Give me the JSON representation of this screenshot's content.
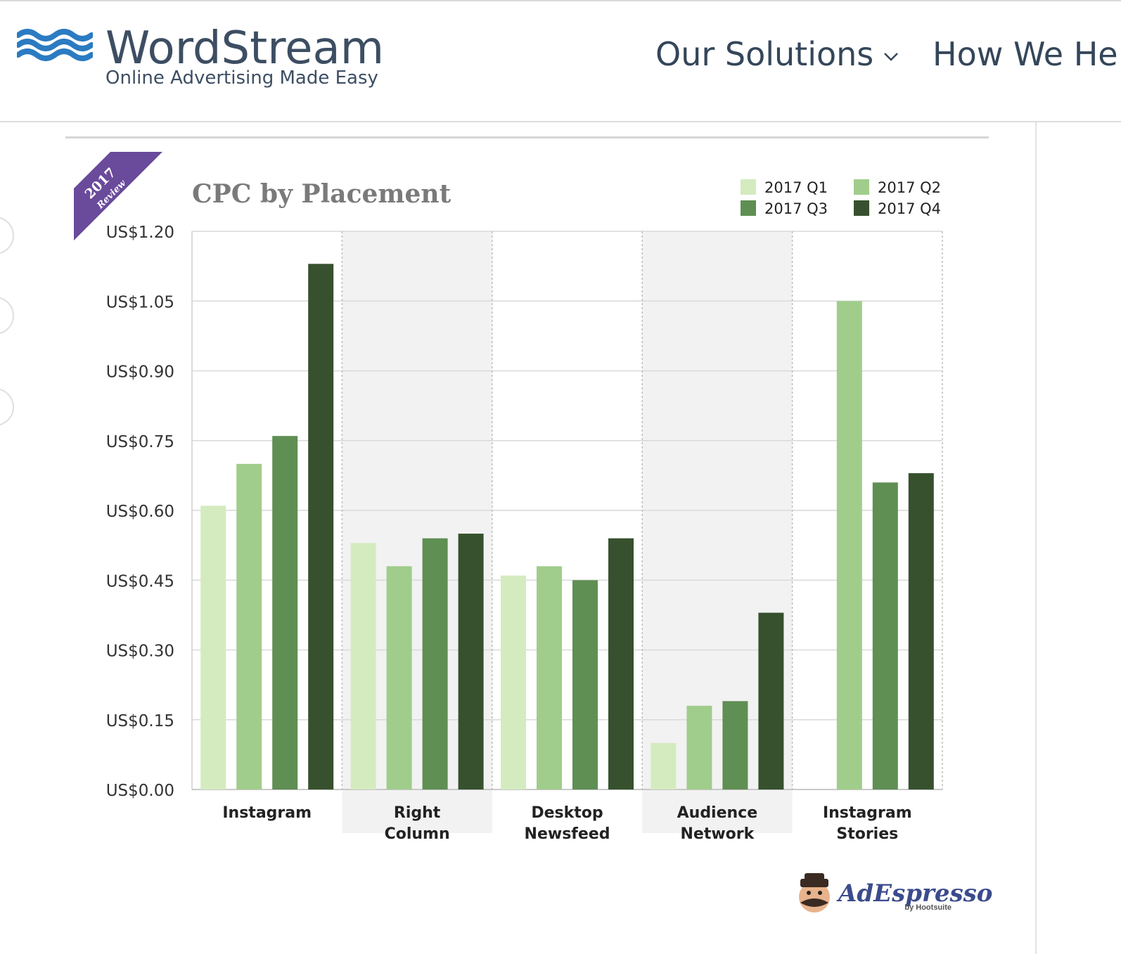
{
  "header": {
    "logo_name": "WordStream",
    "logo_tagline": "Online Advertising Made Easy",
    "nav": [
      {
        "label": "Our Solutions"
      },
      {
        "label": "How We He"
      }
    ]
  },
  "ribbon": {
    "year": "2017",
    "label": "Review"
  },
  "brand": {
    "name": "AdEspresso",
    "sub": "by Hootsuite"
  },
  "colors": {
    "q1": "#d4ebbf",
    "q2": "#a0cd8b",
    "q3": "#5f8f53",
    "q4": "#37512e",
    "title": "#7a7a7a",
    "ribbon": "#6a4a9b",
    "brand": "#3b4b8c"
  },
  "chart_data": {
    "type": "bar",
    "title": "CPC by Placement",
    "xlabel": "",
    "ylabel": "",
    "ylim": [
      0,
      1.2
    ],
    "grid": true,
    "legend_position": "top-right",
    "yticks": [
      "US$0.00",
      "US$0.15",
      "US$0.30",
      "US$0.45",
      "US$0.60",
      "US$0.75",
      "US$0.90",
      "US$1.05",
      "US$1.20"
    ],
    "ytick_values": [
      0,
      0.15,
      0.3,
      0.45,
      0.6,
      0.75,
      0.9,
      1.05,
      1.2
    ],
    "categories": [
      [
        "Instagram"
      ],
      [
        "Right",
        "Column"
      ],
      [
        "Desktop",
        "Newsfeed"
      ],
      [
        "Audience",
        "Network"
      ],
      [
        "Instagram",
        "Stories"
      ]
    ],
    "series": [
      {
        "name": "2017 Q1",
        "values": [
          0.61,
          0.53,
          0.46,
          0.1,
          null
        ]
      },
      {
        "name": "2017 Q2",
        "values": [
          0.7,
          0.48,
          0.48,
          0.18,
          1.05
        ]
      },
      {
        "name": "2017 Q3",
        "values": [
          0.76,
          0.54,
          0.45,
          0.19,
          0.66
        ]
      },
      {
        "name": "2017 Q4",
        "values": [
          1.13,
          0.55,
          0.54,
          0.38,
          0.68
        ]
      }
    ]
  }
}
